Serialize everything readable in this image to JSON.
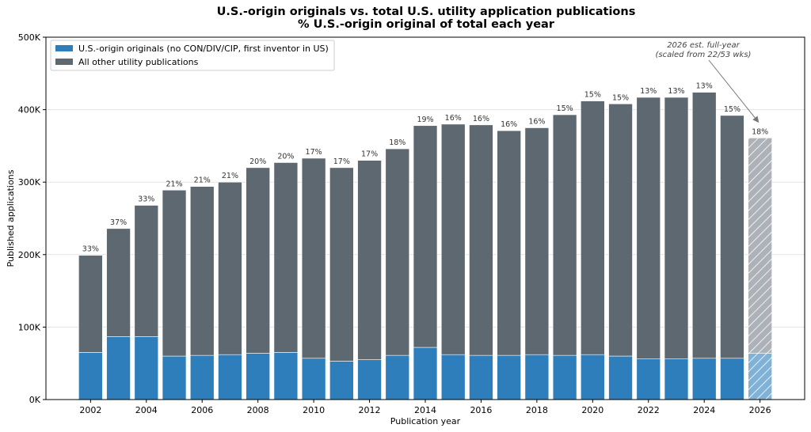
{
  "chart_data": {
    "type": "bar",
    "stacked": true,
    "title": "U.S.-origin originals vs. total U.S. utility application publications",
    "subtitle": "% U.S.-origin original of total each year",
    "xlabel": "Publication year",
    "ylabel": "Published applications",
    "ylim": [
      0,
      500000
    ],
    "xlim": [
      2000.4,
      2027.6
    ],
    "y_ticks": [
      0,
      100000,
      200000,
      300000,
      400000,
      500000
    ],
    "y_tick_labels": [
      "0K",
      "100K",
      "200K",
      "300K",
      "400K",
      "500K"
    ],
    "x_ticks": [
      2002,
      2004,
      2006,
      2008,
      2010,
      2012,
      2014,
      2016,
      2018,
      2020,
      2022,
      2024,
      2026
    ],
    "x_tick_labels": [
      "2002",
      "2004",
      "2006",
      "2008",
      "2010",
      "2012",
      "2014",
      "2016",
      "2018",
      "2020",
      "2022",
      "2024",
      "2026"
    ],
    "grid": "horizontal",
    "legend_position": "top-left",
    "years": [
      2002,
      2003,
      2004,
      2005,
      2006,
      2007,
      2008,
      2009,
      2010,
      2011,
      2012,
      2013,
      2014,
      2015,
      2016,
      2017,
      2018,
      2019,
      2020,
      2021,
      2022,
      2023,
      2024,
      2025,
      2026
    ],
    "series": [
      {
        "name": "U.S.-origin originals (no CON/DIV/CIP, first inventor in US)",
        "color": "#2e7ebc",
        "values": [
          65000,
          87000,
          87000,
          60000,
          61000,
          62000,
          64000,
          65000,
          57000,
          53000,
          55000,
          61000,
          72000,
          62000,
          61000,
          61000,
          62000,
          61000,
          62000,
          60000,
          56000,
          56000,
          57000,
          57000,
          64000
        ]
      },
      {
        "name": "All other utility publications",
        "color": "#5e6870",
        "values": [
          134000,
          149000,
          181000,
          229000,
          233000,
          238000,
          256000,
          262000,
          276000,
          267000,
          275000,
          285000,
          306000,
          318000,
          318000,
          310000,
          313000,
          332000,
          350000,
          348000,
          361000,
          361000,
          367000,
          335000,
          297000
        ]
      }
    ],
    "percent_labels": [
      "33%",
      "37%",
      "33%",
      "21%",
      "21%",
      "21%",
      "20%",
      "20%",
      "17%",
      "17%",
      "17%",
      "18%",
      "19%",
      "16%",
      "16%",
      "16%",
      "16%",
      "15%",
      "15%",
      "15%",
      "13%",
      "13%",
      "13%",
      "15%",
      "18%"
    ],
    "estimated_years": [
      2026
    ],
    "estimated_colors": {
      "base": "#7fb2d6",
      "top": "#adb2b8"
    },
    "annotation": {
      "lines": [
        "2026 est. full-year",
        "(scaled from 22/53 wks)"
      ],
      "target_year": 2026
    }
  }
}
